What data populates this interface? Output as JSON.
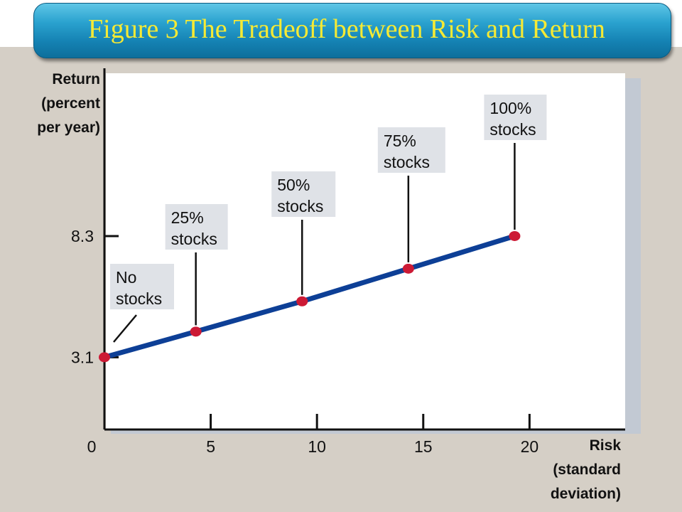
{
  "title": "Figure 3 The Tradeoff between Risk and Return",
  "chart_data": {
    "type": "line",
    "title": "Figure 3 The Tradeoff between Risk and Return",
    "xlabel": [
      "Risk",
      "(standard",
      "deviation)"
    ],
    "ylabel": [
      "Return",
      "(percent",
      "per year)"
    ],
    "xlim": [
      0,
      24.5
    ],
    "ylim": [
      0,
      15.5
    ],
    "x_ticks": [
      0,
      5,
      10,
      15,
      20
    ],
    "x_tick_labels": [
      "0",
      "5",
      "10",
      "15",
      "20"
    ],
    "y_ticks": [
      3.1,
      8.3
    ],
    "y_tick_labels": [
      "3.1",
      "8.3"
    ],
    "grid": false,
    "legend": "none",
    "series": [
      {
        "points": [
          {
            "x": 0,
            "y": 3.1,
            "label": [
              "No",
              "stocks"
            ]
          },
          {
            "x": 4.3,
            "y": 4.2,
            "label": [
              "25%",
              "stocks"
            ]
          },
          {
            "x": 9.3,
            "y": 5.5,
            "label": [
              "50%",
              "stocks"
            ]
          },
          {
            "x": 14.3,
            "y": 6.9,
            "label": [
              "75%",
              "stocks"
            ]
          },
          {
            "x": 19.3,
            "y": 8.3,
            "label": [
              "100%",
              "stocks"
            ]
          }
        ]
      }
    ],
    "colors": {
      "line": "#0d3f96",
      "marker": "#cc1a35",
      "label_box": "#dfe2e7",
      "axis": "#111111"
    }
  }
}
